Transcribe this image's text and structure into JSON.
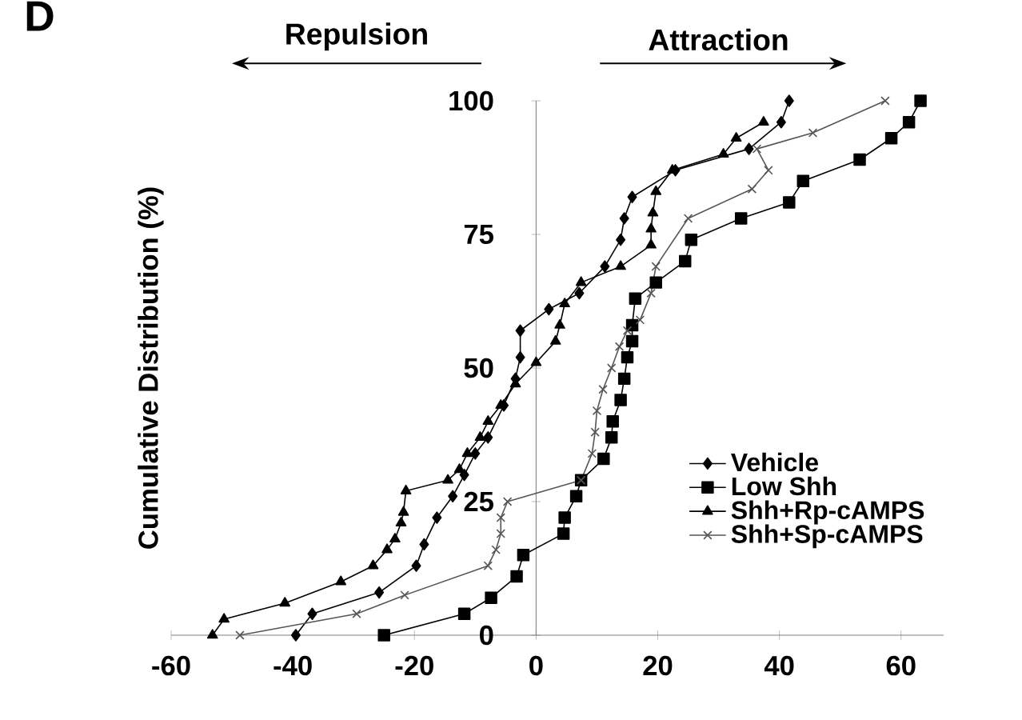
{
  "chart_data": {
    "type": "line",
    "ylabel": "Cumulative Distribution (%)",
    "annotations": [
      "D",
      "Repulsion",
      "Attraction"
    ],
    "xlim": [
      -60,
      67
    ],
    "ylim": [
      0,
      100
    ],
    "xticks": [
      -60,
      -40,
      -20,
      0,
      20,
      40,
      60
    ],
    "yticks": [
      0,
      25,
      50,
      75,
      100
    ],
    "legend": "right",
    "series": [
      {
        "name": "Vehicle",
        "color": "#000000",
        "marker": "diamond",
        "x": [
          -39.5,
          -36.8,
          -25.8,
          -19.7,
          -18.4,
          -16.3,
          -13.7,
          -11.8,
          -10,
          -7.9,
          -5.3,
          -3.4,
          -2.6,
          -2.6,
          2.1,
          7.1,
          11.3,
          13.9,
          14.5,
          15.8,
          22.9,
          35,
          40.3,
          41.6
        ],
        "values": [
          0,
          4,
          8,
          13,
          17,
          22,
          26,
          30,
          34,
          37,
          43,
          48,
          52,
          57,
          61,
          64,
          69,
          74,
          78,
          82,
          87,
          91,
          96,
          100
        ]
      },
      {
        "name": "Low Shh",
        "color": "#000000",
        "marker": "square",
        "x": [
          -25,
          -11.8,
          -7.4,
          -3.2,
          -2.1,
          4.5,
          4.7,
          6.6,
          7.4,
          11.1,
          12.4,
          12.6,
          13.9,
          14.5,
          15,
          15.8,
          15.8,
          16.3,
          19.7,
          24.5,
          25.5,
          33.7,
          41.6,
          43.9,
          53.2,
          58.4,
          61.3,
          63.2
        ],
        "values": [
          0,
          4,
          7,
          11,
          15,
          19,
          22,
          26,
          29,
          33,
          37,
          40,
          44,
          48,
          52,
          55,
          58,
          63,
          66,
          70,
          74,
          78,
          81,
          85,
          89,
          93,
          96,
          100
        ]
      },
      {
        "name": "Shh+Rp-cAMPS",
        "color": "#000000",
        "marker": "triangle",
        "x": [
          -53.2,
          -51.3,
          -41.3,
          -32.1,
          -26.8,
          -24.5,
          -23.2,
          -22.2,
          -21.8,
          -21.4,
          -14.5,
          -12.6,
          -11.3,
          -9.2,
          -7.9,
          -5.8,
          -3.4,
          0,
          3.2,
          3.9,
          4.7,
          7.4,
          13.9,
          18.9,
          18.9,
          19.2,
          19.7,
          22.4,
          30.8,
          32.9,
          37.4
        ],
        "values": [
          0,
          3,
          6,
          10,
          13,
          16,
          18,
          21,
          23,
          27,
          29,
          31,
          34,
          37,
          40,
          43,
          47,
          51,
          55,
          58,
          62,
          66,
          69,
          73,
          76,
          79,
          83,
          87,
          90,
          93,
          96
        ]
      },
      {
        "name": "Shh+Sp-cAMPS",
        "color": "#555555",
        "marker": "cross",
        "x": [
          -48.7,
          -29.5,
          -21.6,
          -7.9,
          -6.6,
          -5.8,
          -5.8,
          -4.7,
          7.4,
          9.2,
          9.7,
          10,
          11,
          12.4,
          13.7,
          15,
          17.1,
          18.9,
          19.7,
          25,
          35.5,
          38.2,
          36.3,
          45.5,
          57.4
        ],
        "values": [
          0,
          4,
          7.5,
          13,
          16,
          19,
          22,
          25,
          29,
          34,
          38,
          42,
          46,
          50,
          54,
          57,
          59,
          64,
          69,
          78,
          83.5,
          87,
          91,
          94,
          100
        ]
      }
    ]
  }
}
